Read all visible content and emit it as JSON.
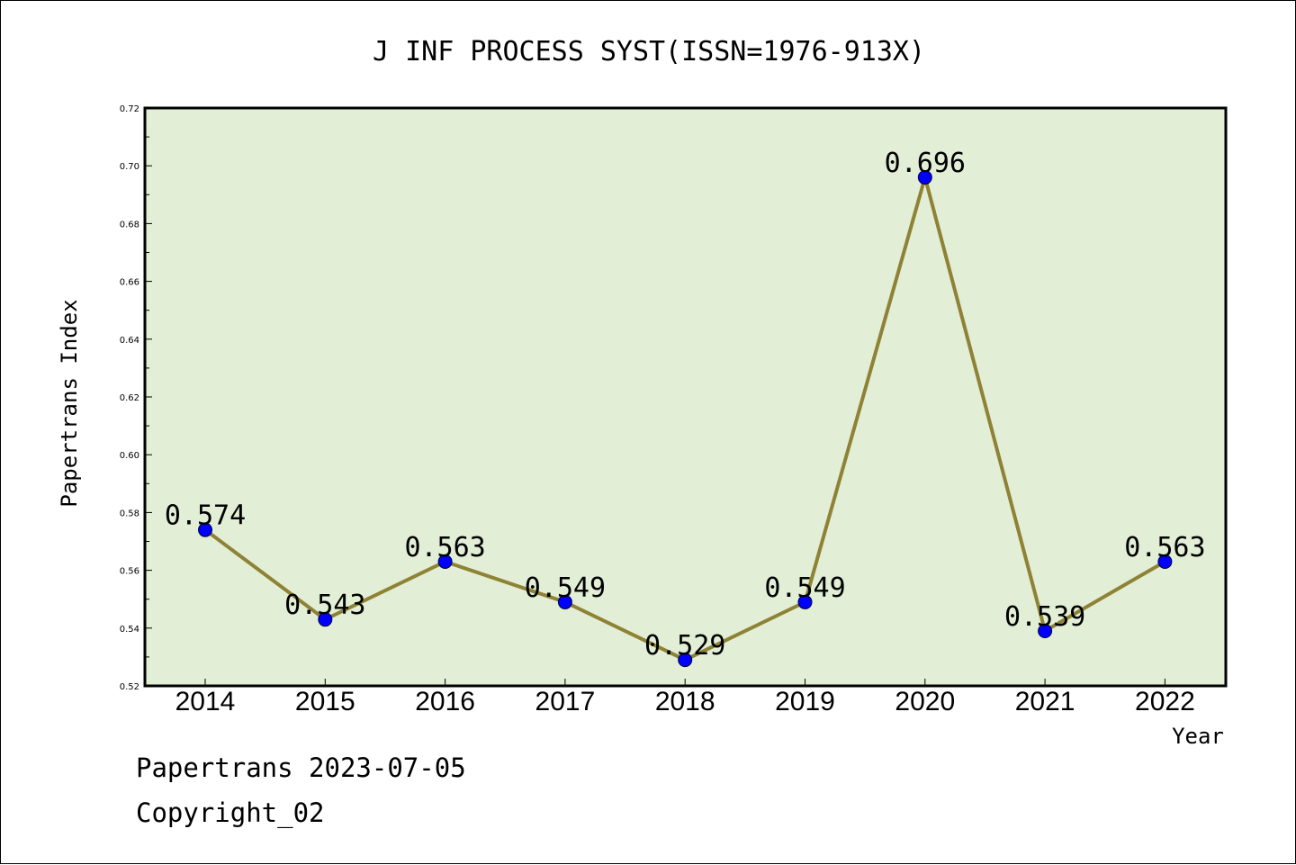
{
  "chart_data": {
    "type": "line",
    "title": "J INF PROCESS SYST(ISSN=1976-913X)",
    "xlabel": "Year",
    "ylabel": "Papertrans Index",
    "categories": [
      "2014",
      "2015",
      "2016",
      "2017",
      "2018",
      "2019",
      "2020",
      "2021",
      "2022"
    ],
    "series": [
      {
        "values": [
          0.574,
          0.543,
          0.563,
          0.549,
          0.529,
          0.549,
          0.696,
          0.539,
          0.563
        ]
      }
    ],
    "data_labels": [
      "0.574",
      "0.543",
      "0.563",
      "0.549",
      "0.529",
      "0.549",
      "0.696",
      "0.539",
      "0.563"
    ],
    "ylim": [
      0.52,
      0.72
    ],
    "yticks": [
      "0.52",
      "0.54",
      "0.56",
      "0.58",
      "0.60",
      "0.62",
      "0.64",
      "0.66",
      "0.68",
      "0.70",
      "0.72"
    ],
    "grid": false,
    "legend": "none",
    "colors": {
      "plot_bg": "#e2efd6",
      "line": "#8e8234",
      "marker": "#0000ff"
    }
  },
  "footer": {
    "line1": "Papertrans 2023-07-05",
    "line2": "Copyright_02"
  }
}
